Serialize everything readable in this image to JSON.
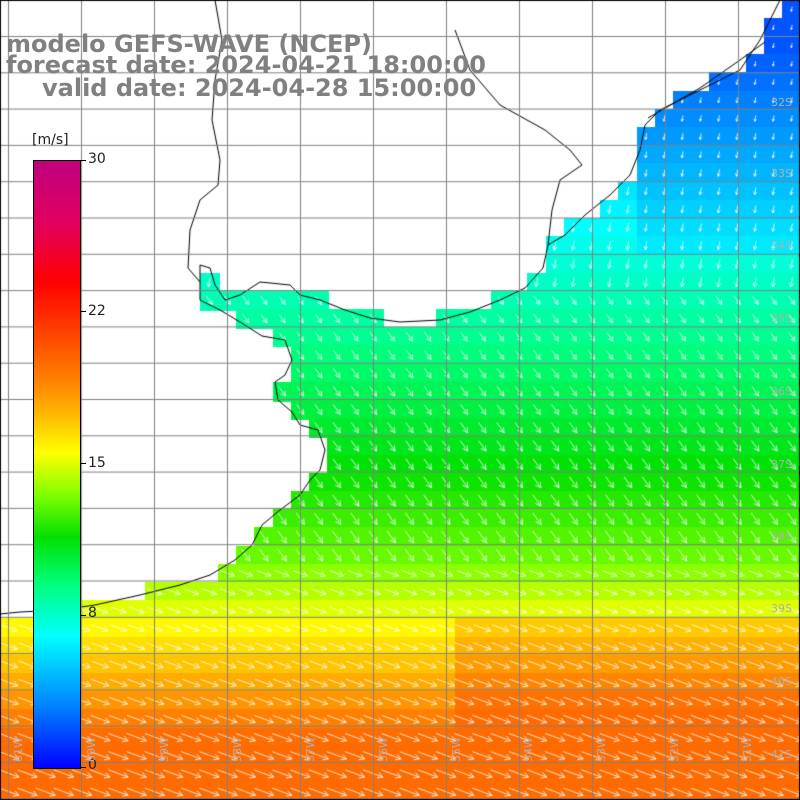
{
  "title": {
    "line1": "modelo GEFS-WAVE (NCEP)",
    "line2": "forecast date: 2024-04-21 18:00:00",
    "line3": "valid date: 2024-04-28 15:00:00"
  },
  "colorbar": {
    "unit": "[m/s]",
    "min": 0,
    "max": 30,
    "ticks": [
      "0",
      "8",
      "15",
      "22",
      "30"
    ]
  },
  "latitude_labels": [
    "32S",
    "33S",
    "34S",
    "35S",
    "36S",
    "37S",
    "38S",
    "39S",
    "40S",
    "41S"
  ],
  "longitude_labels": [
    "61W",
    "60W",
    "59W",
    "58W",
    "57W",
    "56W",
    "55W",
    "54W",
    "53W",
    "52W",
    "51W"
  ],
  "colors": {
    "land": "#ffffff",
    "grid": "#808080",
    "coast": "#000000",
    "arrows": "#ffffff"
  }
}
